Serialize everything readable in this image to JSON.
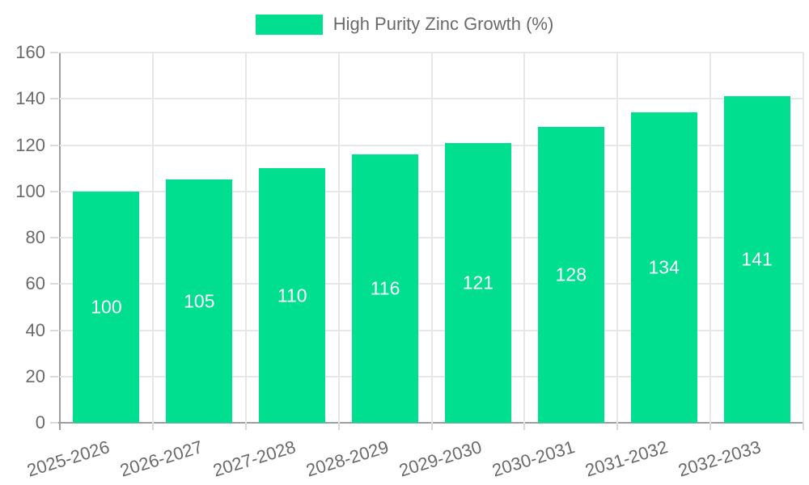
{
  "chart_data": {
    "type": "bar",
    "legend_label": "High Purity Zinc Growth (%)",
    "categories": [
      "2025-2026",
      "2026-2027",
      "2027-2028",
      "2028-2029",
      "2029-2030",
      "2030-2031",
      "2031-2032",
      "2032-2033"
    ],
    "values": [
      100,
      105,
      110,
      116,
      121,
      128,
      134,
      141
    ],
    "value_labels": [
      "100",
      "105",
      "110",
      "116",
      "121",
      "128",
      "134",
      "141"
    ],
    "ylim": [
      0,
      160
    ],
    "ytick_step": 20,
    "ytick_labels": [
      "0",
      "20",
      "40",
      "60",
      "80",
      "100",
      "120",
      "140",
      "160"
    ],
    "grid": true,
    "legend_position": "top",
    "colors": {
      "bar": "#00DE90",
      "value_label": "#ffffff",
      "axis_text": "#6A6A6A",
      "grid": "#E7E7E7",
      "axis_line": "#9E9E9E",
      "tick": "#D9D9D9"
    }
  }
}
